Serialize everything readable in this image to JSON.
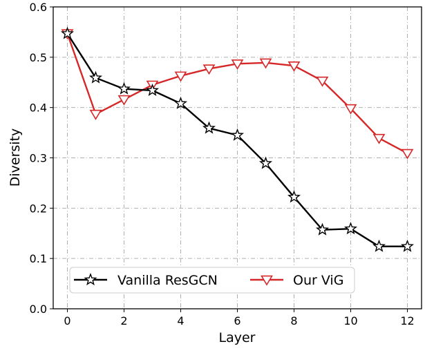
{
  "chart_data": {
    "type": "line",
    "title": "",
    "xlabel": "Layer",
    "ylabel": "Diversity",
    "xlim": [
      -0.5,
      12.5
    ],
    "ylim": [
      0.0,
      0.6
    ],
    "xticks": [
      0,
      2,
      4,
      6,
      8,
      10,
      12
    ],
    "xtick_labels": [
      "0",
      "2",
      "4",
      "6",
      "8",
      "10",
      "12"
    ],
    "yticks": [
      0.0,
      0.1,
      0.2,
      0.3,
      0.4,
      0.5,
      0.6
    ],
    "ytick_labels": [
      "0.0",
      "0.1",
      "0.2",
      "0.3",
      "0.4",
      "0.5",
      "0.6"
    ],
    "grid": true,
    "legend_position": "lower-left, horizontal",
    "x": [
      0,
      1,
      2,
      3,
      4,
      5,
      6,
      7,
      8,
      9,
      10,
      11,
      12
    ],
    "series": [
      {
        "name": "Vanilla ResGCN",
        "color": "#000000",
        "marker": "star",
        "values": [
          0.547,
          0.459,
          0.437,
          0.434,
          0.408,
          0.359,
          0.345,
          0.289,
          0.222,
          0.157,
          0.159,
          0.124,
          0.124
        ]
      },
      {
        "name": "Our ViG",
        "color": "#d62728",
        "marker": "triangle-down",
        "values": [
          0.547,
          0.387,
          0.416,
          0.445,
          0.463,
          0.477,
          0.487,
          0.489,
          0.483,
          0.453,
          0.398,
          0.339,
          0.309
        ]
      }
    ]
  }
}
